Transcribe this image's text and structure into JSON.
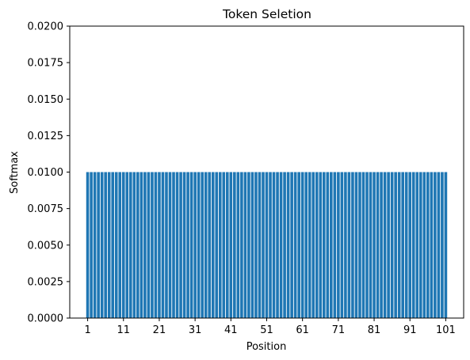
{
  "chart_data": {
    "type": "bar",
    "title": "Token Seletion",
    "xlabel": "Position",
    "ylabel": "Softmax",
    "x_positions": {
      "start": 1,
      "end": 101
    },
    "bar_value": 0.01,
    "x_ticks": [
      1,
      11,
      21,
      31,
      41,
      51,
      61,
      71,
      81,
      91,
      101
    ],
    "y_ticks": [
      "0.0000",
      "0.0025",
      "0.0050",
      "0.0075",
      "0.0100",
      "0.0125",
      "0.0150",
      "0.0175",
      "0.0200"
    ],
    "ylim": [
      0,
      0.02
    ],
    "bar_color": "#1f77b4",
    "grid": false,
    "legend": "none"
  }
}
